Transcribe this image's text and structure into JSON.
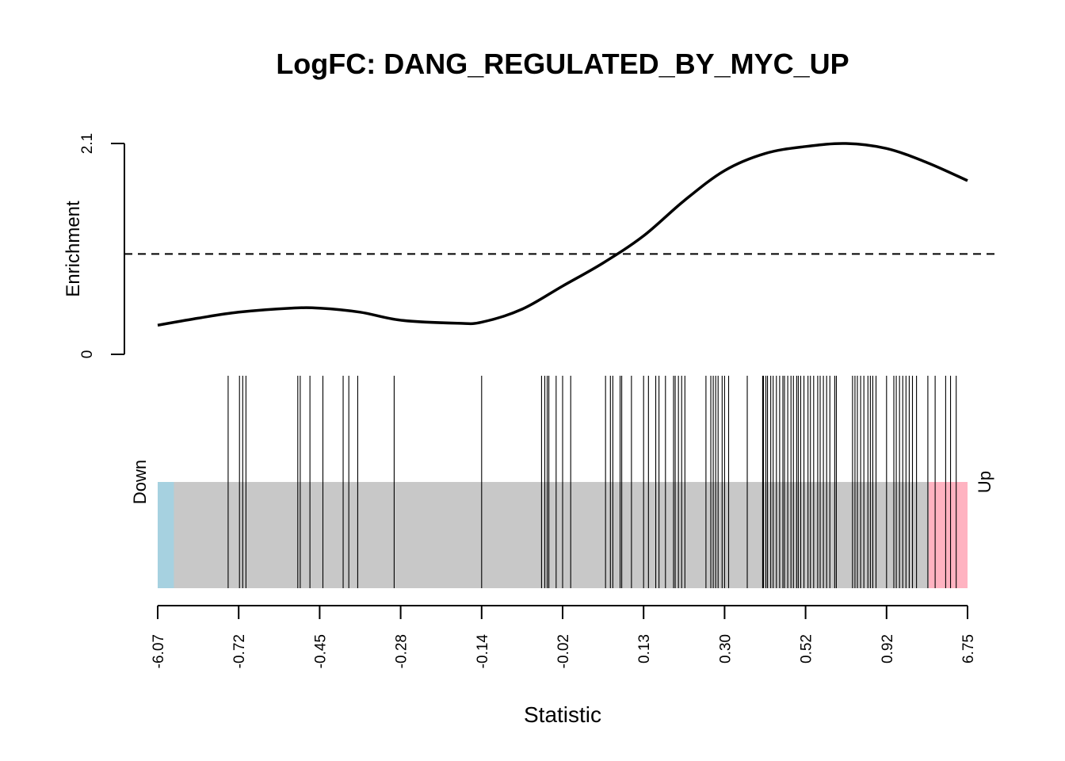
{
  "chart_data": {
    "type": "barcode",
    "title": "LogFC: DANG_REGULATED_BY_MYC_UP",
    "enrichment": {
      "ylabel": "Enrichment",
      "ylim": [
        0,
        2.1
      ],
      "y_ticks": [
        "0",
        "2.1"
      ],
      "reference_line": 1.0,
      "reference_line_style": "dashed",
      "curve_x_rank_fraction": [
        0.0,
        0.05,
        0.1,
        0.165,
        0.2,
        0.25,
        0.3,
        0.37,
        0.4,
        0.45,
        0.5,
        0.55,
        0.6,
        0.65,
        0.7,
        0.75,
        0.8,
        0.85,
        0.9,
        0.95,
        1.0
      ],
      "curve_y": [
        0.29,
        0.36,
        0.42,
        0.46,
        0.46,
        0.42,
        0.34,
        0.31,
        0.32,
        0.45,
        0.68,
        0.91,
        1.18,
        1.53,
        1.83,
        2.0,
        2.07,
        2.1,
        2.05,
        1.91,
        1.73
      ]
    },
    "barcode": {
      "down_label": "Down",
      "up_label": "Up",
      "down_color": "#a6d1e0",
      "mid_color": "#c8c8c8",
      "up_color": "#ffb3c1",
      "down_fraction": 0.02,
      "up_fraction": 0.048,
      "positions_rank_fraction": [
        0.087,
        0.101,
        0.105,
        0.109,
        0.173,
        0.176,
        0.188,
        0.204,
        0.229,
        0.236,
        0.247,
        0.292,
        0.4,
        0.474,
        0.478,
        0.481,
        0.483,
        0.492,
        0.5,
        0.51,
        0.553,
        0.559,
        0.562,
        0.571,
        0.573,
        0.585,
        0.6,
        0.606,
        0.615,
        0.619,
        0.627,
        0.637,
        0.639,
        0.643,
        0.647,
        0.651,
        0.677,
        0.683,
        0.686,
        0.689,
        0.692,
        0.697,
        0.7,
        0.705,
        0.728,
        0.747,
        0.748,
        0.751,
        0.753,
        0.757,
        0.76,
        0.764,
        0.768,
        0.772,
        0.774,
        0.778,
        0.782,
        0.785,
        0.789,
        0.791,
        0.794,
        0.798,
        0.803,
        0.806,
        0.81,
        0.815,
        0.818,
        0.822,
        0.826,
        0.83,
        0.836,
        0.838,
        0.858,
        0.861,
        0.864,
        0.868,
        0.872,
        0.877,
        0.88,
        0.883,
        0.887,
        0.9,
        0.909,
        0.912,
        0.916,
        0.92,
        0.924,
        0.928,
        0.932,
        0.937,
        0.951,
        0.96,
        0.973,
        0.979,
        0.986
      ]
    },
    "x_axis": {
      "xlabel": "Statistic",
      "tick_labels": [
        "-6.07",
        "-0.72",
        "-0.45",
        "-0.28",
        "-0.14",
        "-0.02",
        "0.13",
        "0.30",
        "0.52",
        "0.92",
        "6.75"
      ]
    },
    "colors": {
      "line": "#000000"
    }
  }
}
